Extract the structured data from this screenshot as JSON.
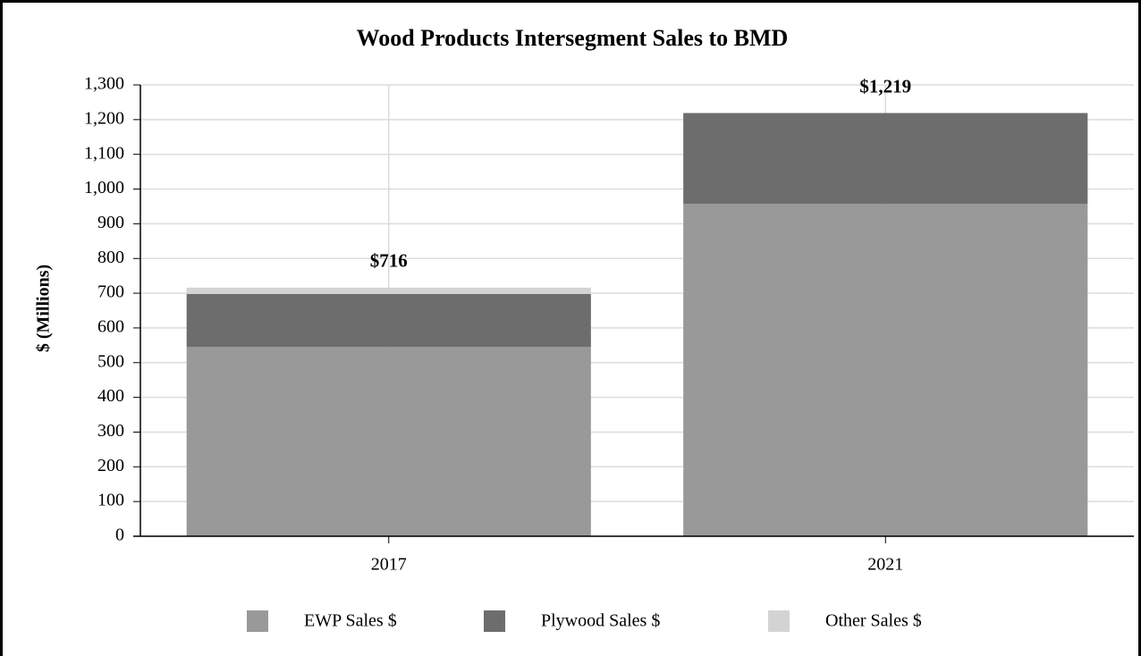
{
  "chart_data": {
    "type": "stacked_bar",
    "title": "Wood Products Intersegment Sales to BMD",
    "y_label": "$ (Millions)",
    "categories": [
      "2017",
      "2021"
    ],
    "series": [
      {
        "name": "EWP Sales $",
        "color": "#999999",
        "values": [
          545,
          957
        ]
      },
      {
        "name": "Plywood Sales $",
        "color": "#6d6d6d",
        "values": [
          153,
          262
        ]
      },
      {
        "name": "Other Sales $",
        "color": "#d3d3d3",
        "values": [
          18,
          0
        ]
      }
    ],
    "totals": [
      716,
      1219
    ],
    "total_labels": [
      "$716",
      "$1,219"
    ],
    "ylim": [
      0,
      1300
    ],
    "yticks": [
      0,
      100,
      200,
      300,
      400,
      500,
      600,
      700,
      800,
      900,
      {
        "value": 1000,
        "label": "1,000"
      },
      {
        "value": 1100,
        "label": "1,100"
      },
      {
        "value": 1200,
        "label": "1,200"
      },
      {
        "value": 1300,
        "label": "1,300"
      }
    ],
    "grid": true,
    "legend": "bottom"
  }
}
